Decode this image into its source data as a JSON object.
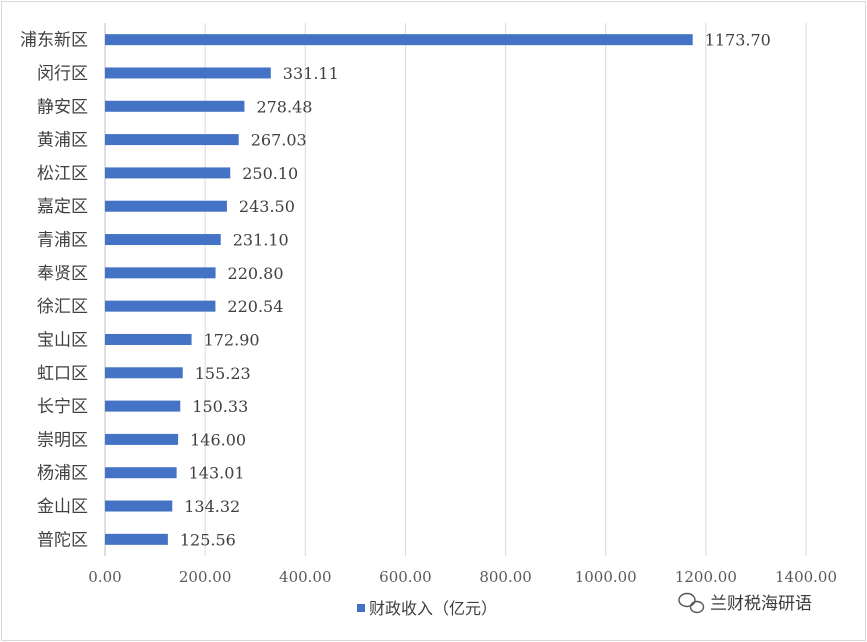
{
  "chart_data": {
    "type": "bar",
    "orientation": "horizontal",
    "categories": [
      "浦东新区",
      "闵行区",
      "静安区",
      "黄浦区",
      "松江区",
      "嘉定区",
      "青浦区",
      "奉贤区",
      "徐汇区",
      "宝山区",
      "虹口区",
      "长宁区",
      "崇明区",
      "杨浦区",
      "金山区",
      "普陀区"
    ],
    "series": [
      {
        "name": "财政收入（亿元）",
        "values": [
          1173.7,
          331.11,
          278.48,
          267.03,
          250.1,
          243.5,
          231.1,
          220.8,
          220.54,
          172.9,
          155.23,
          150.33,
          146.0,
          143.01,
          134.32,
          125.56
        ],
        "value_labels": [
          "1173.70",
          "331.11",
          "278.48",
          "267.03",
          "250.10",
          "243.50",
          "231.10",
          "220.80",
          "220.54",
          "172.90",
          "155.23",
          "150.33",
          "146.00",
          "143.01",
          "134.32",
          "125.56"
        ],
        "color": "#4472c4"
      }
    ],
    "xlim": [
      0,
      1400
    ],
    "x_ticks": [
      0,
      200,
      400,
      600,
      800,
      1000,
      1200,
      1400
    ],
    "x_tick_labels": [
      "0.00",
      "200.00",
      "400.00",
      "600.00",
      "800.00",
      "1000.00",
      "1200.00",
      "1400.00"
    ],
    "grid": "vertical",
    "legend": "bottom-center",
    "title": "",
    "xlabel": "",
    "ylabel": ""
  },
  "watermark": {
    "text": "兰财税海研语",
    "icon": "wechat-icon"
  },
  "colors": {
    "bar": "#4472c4",
    "grid": "#d9d9d9",
    "text": "#404040"
  }
}
